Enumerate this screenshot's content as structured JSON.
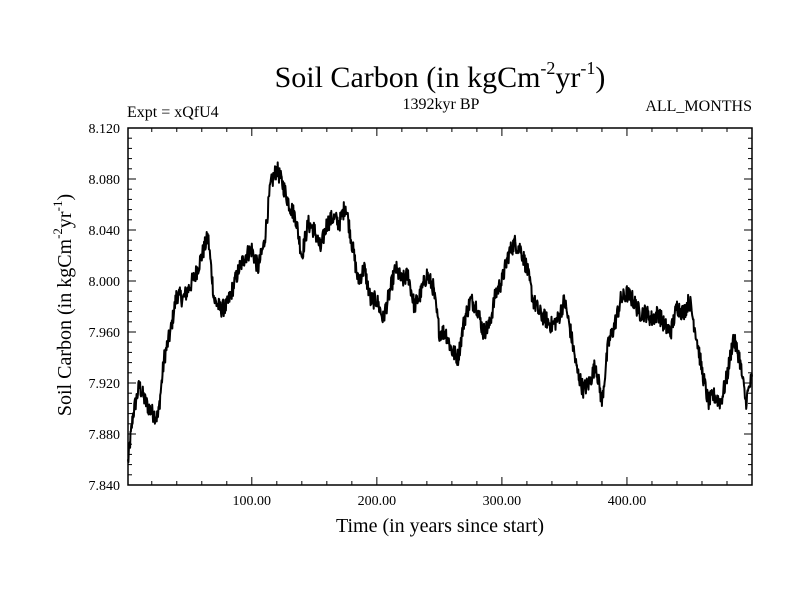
{
  "chart_data": {
    "type": "line",
    "title": {
      "main": "Soil Carbon (in kgCm",
      "sup1": "-2",
      "mid": "yr",
      "sup2": "-1",
      "end": ")"
    },
    "experiment": "Expt = xQfU4",
    "subtitle": "1392kyr BP",
    "season": "ALL_MONTHS",
    "xlabel": "Time (in years since start)",
    "ylabel": {
      "main": "Soil Carbon (in kgCm",
      "sup1": "-2",
      "mid": "yr",
      "sup2": "-1",
      "end": ")"
    },
    "xlim": [
      1,
      500
    ],
    "ylim": [
      7.84,
      8.12
    ],
    "xticks": [
      100,
      200,
      300,
      400
    ],
    "xtick_labels": [
      "100.00",
      "200.00",
      "300.00",
      "400.00"
    ],
    "yticks": [
      7.84,
      7.88,
      7.92,
      7.96,
      8.0,
      8.04,
      8.08,
      8.12
    ],
    "ytick_labels": [
      "7.840",
      "7.880",
      "7.920",
      "7.960",
      "8.000",
      "8.040",
      "8.080",
      "8.120"
    ],
    "series": [
      {
        "name": "Soil Carbon",
        "color": "#000000",
        "x": [
          1,
          5,
          10,
          15,
          20,
          25,
          30,
          35,
          40,
          45,
          50,
          55,
          60,
          65,
          70,
          75,
          80,
          85,
          90,
          95,
          100,
          105,
          110,
          115,
          120,
          125,
          130,
          135,
          140,
          145,
          150,
          155,
          160,
          165,
          170,
          175,
          180,
          185,
          190,
          195,
          200,
          205,
          210,
          215,
          220,
          225,
          230,
          235,
          240,
          245,
          250,
          255,
          260,
          265,
          270,
          275,
          280,
          285,
          290,
          295,
          300,
          305,
          310,
          315,
          320,
          325,
          330,
          335,
          340,
          345,
          350,
          355,
          360,
          365,
          370,
          375,
          380,
          385,
          390,
          395,
          400,
          405,
          410,
          415,
          420,
          425,
          430,
          435,
          440,
          445,
          450,
          455,
          460,
          465,
          470,
          475,
          480,
          485,
          490,
          495,
          500
        ],
        "y": [
          7.858,
          7.895,
          7.918,
          7.905,
          7.897,
          7.893,
          7.94,
          7.96,
          7.99,
          7.986,
          7.995,
          8.005,
          8.02,
          8.035,
          7.985,
          7.978,
          7.98,
          7.995,
          8.01,
          8.02,
          8.025,
          8.01,
          8.03,
          8.075,
          8.088,
          8.075,
          8.06,
          8.05,
          8.02,
          8.045,
          8.04,
          8.025,
          8.045,
          8.05,
          8.045,
          8.06,
          8.03,
          8.0,
          8.01,
          7.985,
          7.985,
          7.97,
          7.99,
          8.01,
          8.0,
          8.005,
          7.98,
          7.99,
          8.005,
          7.995,
          7.96,
          7.96,
          7.945,
          7.94,
          7.97,
          7.985,
          7.98,
          7.96,
          7.965,
          7.99,
          8.0,
          8.02,
          8.03,
          8.025,
          8.01,
          7.985,
          7.975,
          7.97,
          7.965,
          7.97,
          7.985,
          7.96,
          7.93,
          7.915,
          7.92,
          7.935,
          7.905,
          7.95,
          7.965,
          7.985,
          7.99,
          7.985,
          7.975,
          7.975,
          7.97,
          7.975,
          7.965,
          7.96,
          7.98,
          7.975,
          7.985,
          7.96,
          7.93,
          7.905,
          7.91,
          7.905,
          7.925,
          7.955,
          7.94,
          7.905,
          7.925
        ]
      }
    ]
  }
}
